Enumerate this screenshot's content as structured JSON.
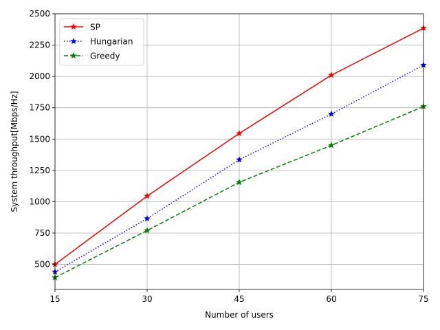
{
  "chart_data": {
    "type": "line",
    "title": "",
    "xlabel": "Number of users",
    "ylabel": "System throughput[Mbps/Hz]",
    "x": [
      15,
      30,
      45,
      60,
      75
    ],
    "xlim": [
      15,
      75
    ],
    "ylim": [
      300,
      2500
    ],
    "xticks": [
      "15",
      "30",
      "45",
      "60",
      "75"
    ],
    "yticks": [
      "500",
      "750",
      "1000",
      "1250",
      "1500",
      "1750",
      "2000",
      "2250",
      "2500"
    ],
    "grid": true,
    "legend_position": "top-left",
    "series": [
      {
        "name": "SP",
        "values": [
          500,
          1045,
          1545,
          2010,
          2385
        ],
        "color": "#ff0000",
        "linestyle": "solid",
        "marker": "star"
      },
      {
        "name": "Hungarian",
        "values": [
          440,
          865,
          1335,
          1700,
          2090
        ],
        "color": "#0000ff",
        "linestyle": "dotted",
        "marker": "star"
      },
      {
        "name": "Greedy",
        "values": [
          395,
          770,
          1155,
          1450,
          1760
        ],
        "color": "#008000",
        "linestyle": "dashed",
        "marker": "star"
      }
    ]
  }
}
